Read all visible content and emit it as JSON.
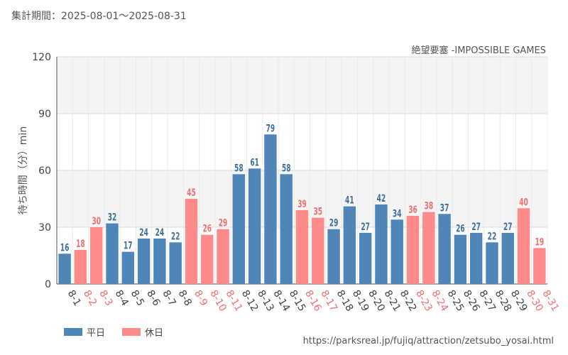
{
  "header": {
    "period": "集計期間：2025-08-01～2025-08-31",
    "subtitle": "絶望要塞 -IMPOSSIBLE GAMES"
  },
  "footer": {
    "source": "https://parksreal.jp/fujiq/attraction/zetsubo_yosai.html"
  },
  "legend": [
    {
      "label": "平日",
      "color": "#4f86b7"
    },
    {
      "label": "休日",
      "color": "#ff8a8a"
    }
  ],
  "colors": {
    "weekday": "#4f86b7",
    "holiday": "#ff8a8a",
    "holiday_label": "#f07070",
    "weekday_label": "#3e6f9e",
    "plot_band": "#f4f4f4",
    "grid": "#dddddd"
  },
  "chart_data": {
    "type": "bar",
    "title": "",
    "xlabel": "",
    "ylabel": "待ち時間（分）min",
    "ylim": [
      0,
      120
    ],
    "yticks": [
      0,
      30,
      60,
      90,
      120
    ],
    "categories": [
      "8-1",
      "8-2",
      "8-3",
      "8-4",
      "8-5",
      "8-6",
      "8-7",
      "8-8",
      "8-9",
      "8-10",
      "8-11",
      "8-12",
      "8-13",
      "8-14",
      "8-15",
      "8-16",
      "8-17",
      "8-18",
      "8-19",
      "8-20",
      "8-21",
      "8-22",
      "8-23",
      "8-24",
      "8-25",
      "8-26",
      "8-27",
      "8-28",
      "8-29",
      "8-30",
      "8-31"
    ],
    "values": [
      16,
      18,
      30,
      32,
      17,
      24,
      24,
      22,
      45,
      26,
      29,
      58,
      61,
      79,
      58,
      39,
      35,
      29,
      41,
      27,
      42,
      34,
      36,
      38,
      37,
      26,
      27,
      22,
      27,
      40,
      19
    ],
    "day_type": [
      "平日",
      "休日",
      "休日",
      "平日",
      "平日",
      "平日",
      "平日",
      "平日",
      "休日",
      "休日",
      "休日",
      "平日",
      "平日",
      "平日",
      "平日",
      "休日",
      "休日",
      "平日",
      "平日",
      "平日",
      "平日",
      "平日",
      "休日",
      "休日",
      "平日",
      "平日",
      "平日",
      "平日",
      "平日",
      "休日",
      "休日"
    ],
    "series": [
      {
        "name": "平日"
      },
      {
        "name": "休日"
      }
    ]
  }
}
